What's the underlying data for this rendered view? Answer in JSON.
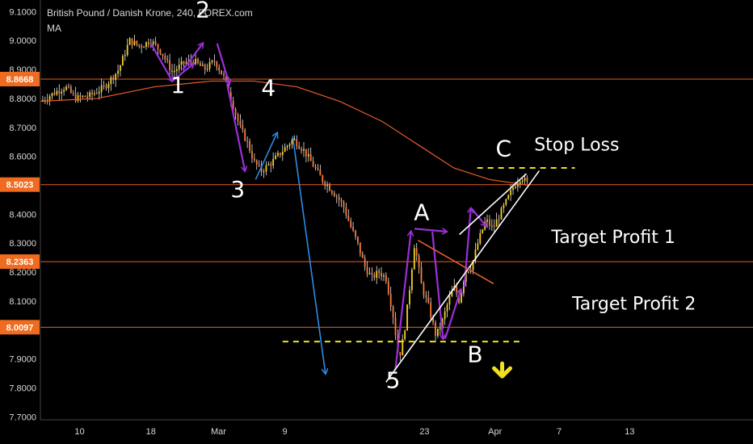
{
  "header": {
    "title": "British Pound / Danish Krone, 240, FOREX.com",
    "indicator": "MA"
  },
  "colors": {
    "background": "#000000",
    "up_candle": "#f5d020",
    "down_candle": "#ff7a3a",
    "wick": "#e8e8e8",
    "ma": "#e85d2a",
    "hline": "#e85d2a",
    "badge": "#f06b20",
    "purple": "#9b30d9",
    "blue": "#2e8be6",
    "dashed": "#f0e020",
    "white": "#ffffff",
    "arrow": "#f0e020",
    "axis_text": "#d8d8d8"
  },
  "chart_data": {
    "type": "candlestick",
    "title": "British Pound / Danish Krone, 240, FOREX.com",
    "symbol": "GBPDKK",
    "timeframe": "240",
    "ylim": [
      7.69,
      9.14
    ],
    "xlim": [
      0,
      100
    ],
    "y_ticks": [
      "9.1000",
      "9.0000",
      "8.9000",
      "8.8000",
      "8.7000",
      "8.6000",
      "8.5000",
      "8.4000",
      "8.3000",
      "8.2000",
      "8.1000",
      "8.0000",
      "7.9000",
      "7.8000",
      "7.7000"
    ],
    "x_ticks": [
      {
        "label": "10",
        "x": 5.5
      },
      {
        "label": "18",
        "x": 15.5
      },
      {
        "label": "Mar",
        "x": 25.0
      },
      {
        "label": "9",
        "x": 34.3
      },
      {
        "label": "23",
        "x": 53.9
      },
      {
        "label": "Apr",
        "x": 63.8
      },
      {
        "label": "7",
        "x": 72.8
      },
      {
        "label": "13",
        "x": 82.7
      }
    ],
    "horizontal_levels": [
      {
        "label": "8.8668",
        "value": 8.8668
      },
      {
        "label": "8.5023",
        "value": 8.5023
      },
      {
        "label": "8.2363",
        "value": 8.2363
      },
      {
        "label": "8.0097",
        "value": 8.0097
      }
    ],
    "price_path": [
      [
        0,
        8.79
      ],
      [
        2,
        8.82
      ],
      [
        3.5,
        8.84
      ],
      [
        5,
        8.8
      ],
      [
        7,
        8.81
      ],
      [
        9,
        8.84
      ],
      [
        11,
        8.9
      ],
      [
        12.5,
        9.0
      ],
      [
        14,
        8.98
      ],
      [
        15.5,
        9.0
      ],
      [
        17,
        8.96
      ],
      [
        18.5,
        8.89
      ],
      [
        20,
        8.92
      ],
      [
        21.5,
        8.93
      ],
      [
        23,
        8.9
      ],
      [
        24.5,
        8.93
      ],
      [
        26,
        8.86
      ],
      [
        27,
        8.78
      ],
      [
        28,
        8.7
      ],
      [
        29,
        8.65
      ],
      [
        30,
        8.58
      ],
      [
        31,
        8.55
      ],
      [
        32.5,
        8.58
      ],
      [
        34,
        8.62
      ],
      [
        35.5,
        8.66
      ],
      [
        37,
        8.62
      ],
      [
        38,
        8.58
      ],
      [
        39.5,
        8.52
      ],
      [
        41,
        8.48
      ],
      [
        42.5,
        8.43
      ],
      [
        43.5,
        8.36
      ],
      [
        44.5,
        8.3
      ],
      [
        45.5,
        8.22
      ],
      [
        46.5,
        8.18
      ],
      [
        47.5,
        8.2
      ],
      [
        48.5,
        8.18
      ],
      [
        49.5,
        8.05
      ],
      [
        50.3,
        7.9
      ],
      [
        51,
        7.98
      ],
      [
        51.7,
        8.12
      ],
      [
        52.5,
        8.3
      ],
      [
        53.5,
        8.15
      ],
      [
        54.5,
        8.08
      ],
      [
        55.5,
        7.98
      ],
      [
        56.3,
        8.02
      ],
      [
        57,
        8.08
      ],
      [
        58,
        8.15
      ],
      [
        58.8,
        8.1
      ],
      [
        59.6,
        8.2
      ],
      [
        60.5,
        8.22
      ],
      [
        61.5,
        8.31
      ],
      [
        62.5,
        8.38
      ],
      [
        63.5,
        8.35
      ],
      [
        64.5,
        8.4
      ],
      [
        65.5,
        8.45
      ],
      [
        66.5,
        8.5
      ],
      [
        67.5,
        8.53
      ],
      [
        68.5,
        8.5
      ]
    ],
    "moving_average": [
      [
        0,
        8.79
      ],
      [
        8,
        8.8
      ],
      [
        16,
        8.84
      ],
      [
        24,
        8.86
      ],
      [
        30,
        8.86
      ],
      [
        36,
        8.84
      ],
      [
        42,
        8.79
      ],
      [
        48,
        8.72
      ],
      [
        53,
        8.64
      ],
      [
        58,
        8.56
      ],
      [
        63,
        8.52
      ],
      [
        68.5,
        8.5
      ]
    ],
    "wave_labels": [
      {
        "text": "1",
        "x": 19.3,
        "y": 8.82
      },
      {
        "text": "2",
        "x": 22.8,
        "y": 9.08
      },
      {
        "text": "3",
        "x": 27.7,
        "y": 8.46
      },
      {
        "text": "4",
        "x": 32.0,
        "y": 8.81
      },
      {
        "text": "5",
        "x": 49.5,
        "y": 7.8
      },
      {
        "text": "A",
        "x": 53.5,
        "y": 8.38
      },
      {
        "text": "B",
        "x": 61.0,
        "y": 7.89
      },
      {
        "text": "C",
        "x": 65.0,
        "y": 8.6
      }
    ],
    "annotations": [
      {
        "text": "Stop Loss",
        "x": 69.3,
        "y": 8.62
      },
      {
        "text": "Target Profit 1",
        "x": 71.7,
        "y": 8.3
      },
      {
        "text": "Target Profit 2",
        "x": 74.6,
        "y": 8.07
      }
    ],
    "drawings": {
      "purple_arrows": [
        [
          [
            15.5,
            8.99
          ],
          [
            18.5,
            8.86
          ]
        ],
        [
          [
            18.5,
            8.86
          ],
          [
            21.5,
            8.92
          ]
        ],
        [
          [
            20,
            8.9
          ],
          [
            22.8,
            8.99
          ]
        ],
        [
          [
            24.8,
            8.99
          ],
          [
            26.5,
            8.85
          ]
        ],
        [
          [
            26.2,
            8.85
          ],
          [
            28.7,
            8.55
          ]
        ],
        [
          [
            49.8,
            7.86
          ],
          [
            52.0,
            8.34
          ]
        ],
        [
          [
            52.5,
            8.35
          ],
          [
            57.0,
            8.34
          ]
        ],
        [
          [
            55.0,
            8.34
          ],
          [
            56.5,
            7.97
          ]
        ],
        [
          [
            56.8,
            7.97
          ],
          [
            59.0,
            8.14
          ]
        ],
        [
          [
            59.5,
            8.15
          ],
          [
            60.4,
            8.42
          ]
        ],
        [
          [
            60.5,
            8.42
          ],
          [
            62.5,
            8.36
          ]
        ]
      ],
      "blue_arrows": [
        [
          [
            30.2,
            8.52
          ],
          [
            33.2,
            8.68
          ]
        ],
        [
          [
            35.4,
            8.67
          ],
          [
            40.0,
            7.85
          ]
        ]
      ],
      "white_lines": [
        [
          [
            48.5,
            7.82
          ],
          [
            70.0,
            8.55
          ]
        ],
        [
          [
            58.8,
            8.33
          ],
          [
            68.2,
            8.54
          ]
        ]
      ],
      "orange_line": [
        [
          53.0,
          8.31
        ],
        [
          63.6,
          8.16
        ]
      ],
      "dashed_lines": [
        {
          "x1": 61.3,
          "x2": 75.0,
          "y": 8.56
        },
        {
          "x1": 34.0,
          "x2": 67.7,
          "y": 7.96
        }
      ],
      "down_arrow": {
        "x": 64.8,
        "y": 7.84
      }
    }
  }
}
